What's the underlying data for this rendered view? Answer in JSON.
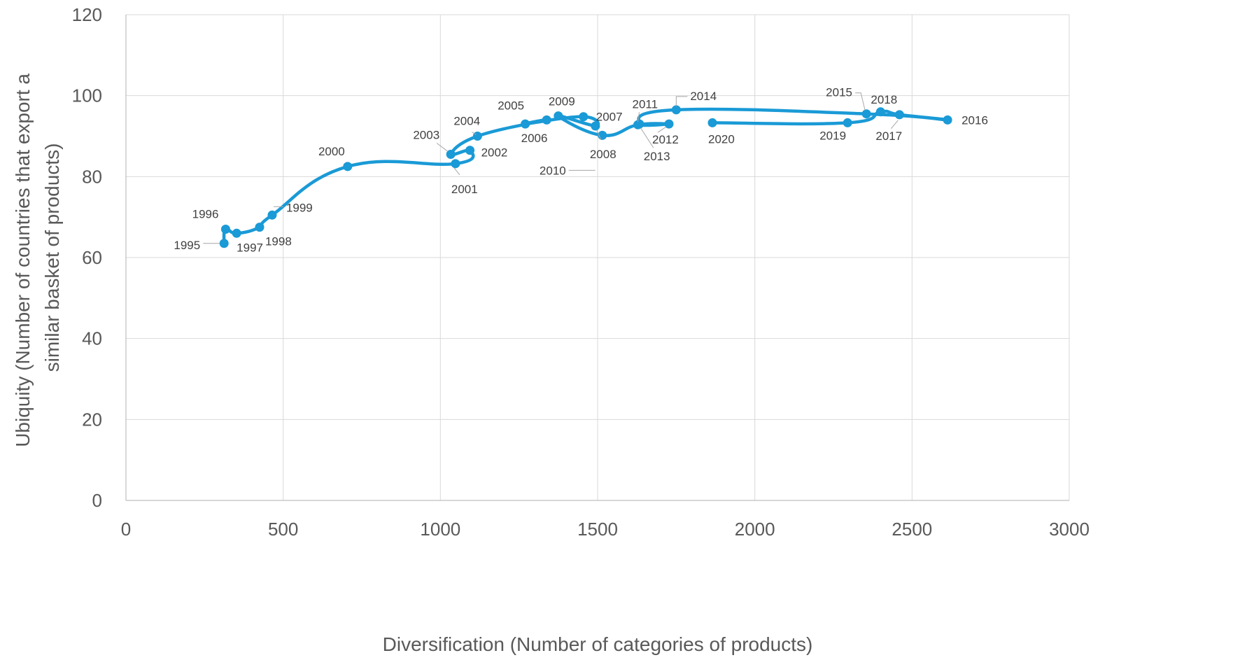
{
  "chart_data": {
    "type": "scatter",
    "xlabel": "Diversification (Number of categories of products)",
    "ylabel_lines": [
      "Ubiquity  (Number of countries that export a",
      "similar basket of products)"
    ],
    "xlim": [
      0,
      3000
    ],
    "ylim": [
      0,
      120
    ],
    "x_ticks": [
      0,
      500,
      1000,
      1500,
      2000,
      2500,
      3000
    ],
    "y_ticks": [
      0,
      20,
      40,
      60,
      80,
      100,
      120
    ],
    "grid": true,
    "smoothed_line": true,
    "color": "#1a9ad6",
    "points": [
      {
        "label": "1995",
        "x": 312,
        "y": 63.5
      },
      {
        "label": "1996",
        "x": 317,
        "y": 67
      },
      {
        "label": "1997",
        "x": 352,
        "y": 66
      },
      {
        "label": "1998",
        "x": 425,
        "y": 67.5
      },
      {
        "label": "1999",
        "x": 465,
        "y": 70.5
      },
      {
        "label": "2000",
        "x": 705,
        "y": 82.5
      },
      {
        "label": "2001",
        "x": 1048,
        "y": 83.2
      },
      {
        "label": "2002",
        "x": 1094,
        "y": 86.5
      },
      {
        "label": "2003",
        "x": 1033,
        "y": 85.5
      },
      {
        "label": "2004",
        "x": 1118,
        "y": 90
      },
      {
        "label": "2005",
        "x": 1338,
        "y": 94
      },
      {
        "label": "2006",
        "x": 1270,
        "y": 93
      },
      {
        "label": "2007",
        "x": 1455,
        "y": 94.8
      },
      {
        "label": "2008",
        "x": 1493,
        "y": 92.5
      },
      {
        "label": "2009",
        "x": 1375,
        "y": 95
      },
      {
        "label": "2010",
        "x": 1515,
        "y": 90.2
      },
      {
        "label": "2011",
        "x": 1628,
        "y": 92.8
      },
      {
        "label": "2012",
        "x": 1727,
        "y": 93
      },
      {
        "label": "2013",
        "x": 1633,
        "y": 93
      },
      {
        "label": "2014",
        "x": 1750,
        "y": 96.5
      },
      {
        "label": "2015",
        "x": 2355,
        "y": 95.5
      },
      {
        "label": "2016",
        "x": 2613,
        "y": 94
      },
      {
        "label": "2017",
        "x": 2460,
        "y": 95.3
      },
      {
        "label": "2018",
        "x": 2400,
        "y": 96
      },
      {
        "label": "2019",
        "x": 2295,
        "y": 93.3
      },
      {
        "label": "2020",
        "x": 1865,
        "y": 93.3
      }
    ]
  }
}
